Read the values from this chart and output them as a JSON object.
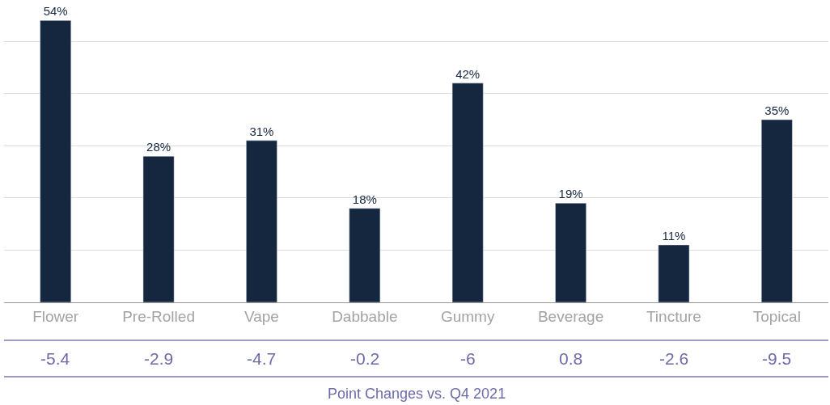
{
  "chart_data": {
    "type": "bar",
    "categories": [
      "Flower",
      "Pre-Rolled",
      "Vape",
      "Dabbable",
      "Gummy",
      "Beverage",
      "Tincture",
      "Topical"
    ],
    "values": [
      54,
      28,
      31,
      18,
      42,
      19,
      11,
      35
    ],
    "value_labels": [
      "54%",
      "28%",
      "31%",
      "18%",
      "42%",
      "19%",
      "11%",
      "35%"
    ],
    "color": "#15263f",
    "grid": "y",
    "tick_labels": "x",
    "annotations": [
      "-5.4",
      "-2.9",
      "-4.7",
      "-0.2",
      "-6",
      "0.8",
      "-2.6",
      "-9.5",
      "Point Changes vs. Q4 2021"
    ]
  }
}
